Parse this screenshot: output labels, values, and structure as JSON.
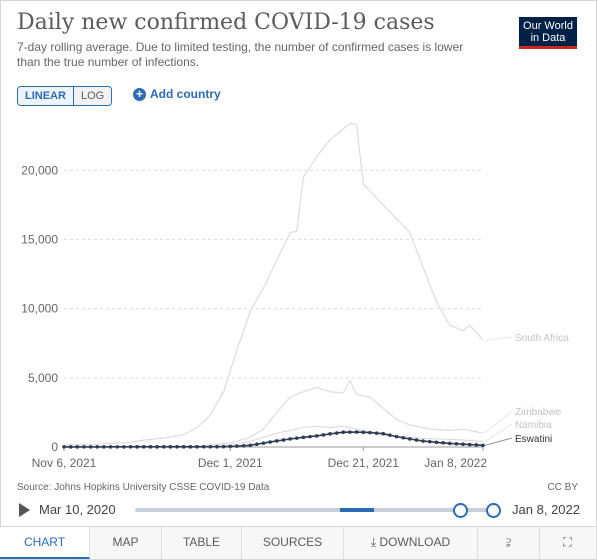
{
  "header": {
    "title": "Daily new confirmed COVID-19 cases",
    "subtitle": "7-day rolling average. Due to limited testing, the number of confirmed cases is lower than the true number of infections."
  },
  "logo": {
    "line1": "Our World",
    "line2": "in Data"
  },
  "controls": {
    "linear_label": "LINEAR",
    "log_label": "LOG",
    "add_country_label": "Add country"
  },
  "footer": {
    "source": "Source: Johns Hopkins University CSSE COVID-19 Data",
    "license": "CC BY"
  },
  "timeline": {
    "start_date": "Mar 10, 2020",
    "end_date": "Jan 8, 2022"
  },
  "tabs": [
    {
      "label": "CHART",
      "icon": ""
    },
    {
      "label": "MAP",
      "icon": ""
    },
    {
      "label": "TABLE",
      "icon": ""
    },
    {
      "label": "SOURCES",
      "icon": ""
    },
    {
      "label": "DOWNLOAD",
      "icon": "download-icon"
    },
    {
      "label": "",
      "icon": "share-icon"
    },
    {
      "label": "",
      "icon": "fullscreen-icon"
    }
  ],
  "colors": {
    "accent": "#2c6bb5",
    "highlight_series": "#2f3d54",
    "muted_series": "#dcdcdc"
  },
  "chart_data": {
    "type": "line",
    "x_ticks": [
      "Nov 6, 2021",
      "Dec 1, 2021",
      "Dec 21, 2021",
      "Jan 8, 2022"
    ],
    "x_tick_days": [
      0,
      25,
      45,
      63
    ],
    "x_range_days": [
      0,
      63
    ],
    "ylim": [
      0,
      24000
    ],
    "y_ticks": [
      0,
      5000,
      10000,
      15000,
      20000
    ],
    "y_tick_labels": [
      "0",
      "5,000",
      "10,000",
      "15,000",
      "20,000"
    ],
    "grid": "horizontal dashed",
    "series": [
      {
        "name": "South Africa",
        "highlighted": false,
        "points": [
          [
            0,
            150
          ],
          [
            5,
            200
          ],
          [
            10,
            350
          ],
          [
            12,
            500
          ],
          [
            15,
            650
          ],
          [
            18,
            900
          ],
          [
            20,
            1400
          ],
          [
            22,
            2300
          ],
          [
            24,
            4000
          ],
          [
            26,
            7000
          ],
          [
            28,
            9800
          ],
          [
            30,
            11500
          ],
          [
            32,
            13500
          ],
          [
            34,
            15500
          ],
          [
            35,
            15600
          ],
          [
            36,
            19500
          ],
          [
            38,
            21000
          ],
          [
            40,
            22200
          ],
          [
            42,
            23000
          ],
          [
            43,
            23400
          ],
          [
            44,
            23300
          ],
          [
            45,
            19000
          ],
          [
            46,
            18500
          ],
          [
            48,
            17500
          ],
          [
            50,
            16500
          ],
          [
            52,
            15500
          ],
          [
            54,
            13000
          ],
          [
            56,
            10500
          ],
          [
            58,
            8800
          ],
          [
            60,
            8400
          ],
          [
            61,
            8800
          ],
          [
            62,
            8300
          ],
          [
            63,
            7700
          ]
        ]
      },
      {
        "name": "Zimbabwe",
        "highlighted": false,
        "points": [
          [
            0,
            30
          ],
          [
            10,
            40
          ],
          [
            20,
            80
          ],
          [
            25,
            300
          ],
          [
            28,
            700
          ],
          [
            30,
            1300
          ],
          [
            32,
            2500
          ],
          [
            34,
            3600
          ],
          [
            36,
            4000
          ],
          [
            38,
            4300
          ],
          [
            40,
            4000
          ],
          [
            42,
            3900
          ],
          [
            43,
            4800
          ],
          [
            44,
            3800
          ],
          [
            46,
            3600
          ],
          [
            48,
            2800
          ],
          [
            50,
            2000
          ],
          [
            52,
            1600
          ],
          [
            55,
            1300
          ],
          [
            58,
            1200
          ],
          [
            60,
            1300
          ],
          [
            63,
            1000
          ]
        ]
      },
      {
        "name": "Namibia",
        "highlighted": false,
        "points": [
          [
            0,
            20
          ],
          [
            10,
            25
          ],
          [
            20,
            40
          ],
          [
            25,
            150
          ],
          [
            28,
            400
          ],
          [
            30,
            700
          ],
          [
            32,
            1000
          ],
          [
            34,
            1200
          ],
          [
            36,
            1400
          ],
          [
            38,
            1500
          ],
          [
            40,
            1400
          ],
          [
            42,
            1500
          ],
          [
            44,
            1300
          ],
          [
            46,
            1100
          ],
          [
            48,
            900
          ],
          [
            50,
            800
          ],
          [
            52,
            700
          ],
          [
            55,
            600
          ],
          [
            58,
            550
          ],
          [
            60,
            500
          ],
          [
            63,
            400
          ]
        ]
      },
      {
        "name": "Eswatini",
        "highlighted": true,
        "points": [
          [
            0,
            8
          ],
          [
            20,
            12
          ],
          [
            24,
            25
          ],
          [
            26,
            60
          ],
          [
            28,
            120
          ],
          [
            30,
            280
          ],
          [
            32,
            440
          ],
          [
            34,
            580
          ],
          [
            36,
            700
          ],
          [
            38,
            800
          ],
          [
            40,
            950
          ],
          [
            42,
            1070
          ],
          [
            44,
            1080
          ],
          [
            46,
            1040
          ],
          [
            48,
            960
          ],
          [
            50,
            750
          ],
          [
            52,
            580
          ],
          [
            54,
            430
          ],
          [
            56,
            340
          ],
          [
            58,
            260
          ],
          [
            60,
            200
          ],
          [
            62,
            150
          ],
          [
            63,
            120
          ]
        ]
      }
    ]
  }
}
